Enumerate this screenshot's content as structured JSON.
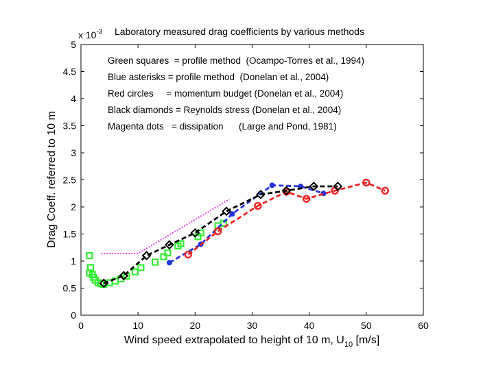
{
  "chart_data": {
    "type": "line",
    "title": "Laboratory measured drag coefficients by various methods",
    "xlabel": "Wind speed extrapolated to height of 10 m, U",
    "xlabel_subscript": "10",
    "xlabel_units": " [m/s]",
    "ylabel": "Drag Coeff. referred to 10 m",
    "y_multiplier_base": "x 10",
    "y_multiplier_exp": "-3",
    "xlim": [
      0,
      60
    ],
    "ylim": [
      0,
      5
    ],
    "xticks": [
      "0",
      "10",
      "20",
      "30",
      "40",
      "50",
      "60"
    ],
    "yticks": [
      "0",
      "0.5",
      "1",
      "1.5",
      "2",
      "2.5",
      "3",
      "3.5",
      "4",
      "4.5",
      "5"
    ],
    "grid": false,
    "legend_position": "top-left",
    "legend_lines": [
      {
        "label": "Green squares  = profile method  (Ocampo-Torres et al., 1994)"
      },
      {
        "label": "Blue asterisks = profile method  (Donelan et al., 2004)"
      },
      {
        "label": "Red circles     = momentum budget (Donelan et al., 2004)"
      },
      {
        "label": "Black diamonds = Reynolds stress (Donelan et al., 2004)"
      },
      {
        "label": "Magenta dots   = dissipation      (Large and Pond, 1981)"
      }
    ],
    "series": [
      {
        "name": "Green squares = profile method (Ocampo-Torres et al., 1994)",
        "color": "#33ee33",
        "marker": "square",
        "line": "none",
        "x": [
          1.5,
          1.5,
          1.7,
          2.0,
          2.2,
          2.5,
          3.0,
          3.5,
          4.0,
          5.0,
          6.0,
          7.0,
          8.0,
          9.5,
          10.5,
          13.0,
          14.5,
          15.2,
          17.0,
          17.5,
          20.5,
          21.0,
          24.0,
          25.0
        ],
        "y": [
          1.1,
          0.78,
          0.88,
          0.75,
          0.7,
          0.65,
          0.6,
          0.58,
          0.57,
          0.6,
          0.63,
          0.67,
          0.72,
          0.8,
          0.88,
          0.98,
          1.08,
          1.15,
          1.28,
          1.32,
          1.45,
          1.52,
          1.65,
          1.7
        ]
      },
      {
        "name": "Blue asterisks = profile method (Donelan et al., 2004)",
        "color": "#2233dd",
        "marker": "dot",
        "line": "dashed",
        "x": [
          15.5,
          21.0,
          26.5,
          33.5,
          38.5,
          42.5
        ],
        "y": [
          0.97,
          1.31,
          1.87,
          2.4,
          2.38,
          2.25
        ]
      },
      {
        "name": "Red circles = momentum budget (Donelan et al., 2004)",
        "color": "#ee2222",
        "marker": "circle",
        "line": "dashed",
        "x": [
          18.8,
          24.0,
          31.0,
          36.0,
          39.5,
          44.5,
          50.0,
          53.3
        ],
        "y": [
          1.12,
          1.55,
          2.02,
          2.28,
          2.15,
          2.3,
          2.45,
          2.3
        ]
      },
      {
        "name": "Black diamonds = Reynolds stress (Donelan et al., 2004)",
        "color": "#000000",
        "marker": "diamond",
        "line": "dashed",
        "x": [
          4.0,
          7.5,
          11.5,
          15.5,
          20.0,
          25.5,
          31.5,
          36.0,
          40.8,
          45.0
        ],
        "y": [
          0.59,
          0.73,
          1.1,
          1.3,
          1.52,
          1.92,
          2.23,
          2.3,
          2.38,
          2.38
        ]
      },
      {
        "name": "Magenta dots = dissipation (Large and Pond, 1981)",
        "color": "#ee44ee",
        "marker": "none",
        "line": "dotted",
        "x": [
          3.5,
          10.0,
          26.0
        ],
        "y": [
          1.14,
          1.14,
          2.14
        ]
      }
    ]
  }
}
